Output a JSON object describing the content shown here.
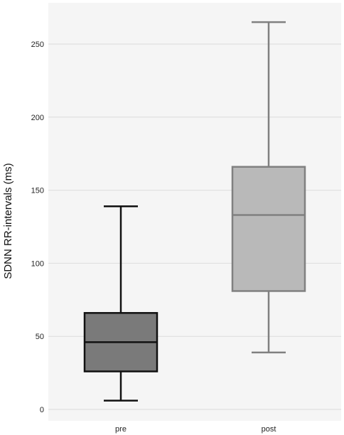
{
  "chart_data": {
    "type": "boxplot",
    "title": "",
    "xlabel": "",
    "ylabel": "SDNN RR-intervals (ms)",
    "ylim": [
      -7,
      278
    ],
    "yticks": [
      0,
      50,
      100,
      150,
      200,
      250
    ],
    "ytick_labels": [
      "0",
      "50",
      "100",
      "150",
      "200",
      "250"
    ],
    "grid": true,
    "categories": [
      "pre",
      "post"
    ],
    "boxes": [
      {
        "category": "pre",
        "min": 6,
        "q1": 26,
        "median": 46,
        "q3": 66,
        "max": 139,
        "fill": "#7a7a7a",
        "stroke": "#111111"
      },
      {
        "category": "post",
        "min": 39,
        "q1": 81,
        "median": 133,
        "q3": 166,
        "max": 265,
        "fill": "#b9b9b9",
        "stroke": "#808080"
      }
    ]
  }
}
